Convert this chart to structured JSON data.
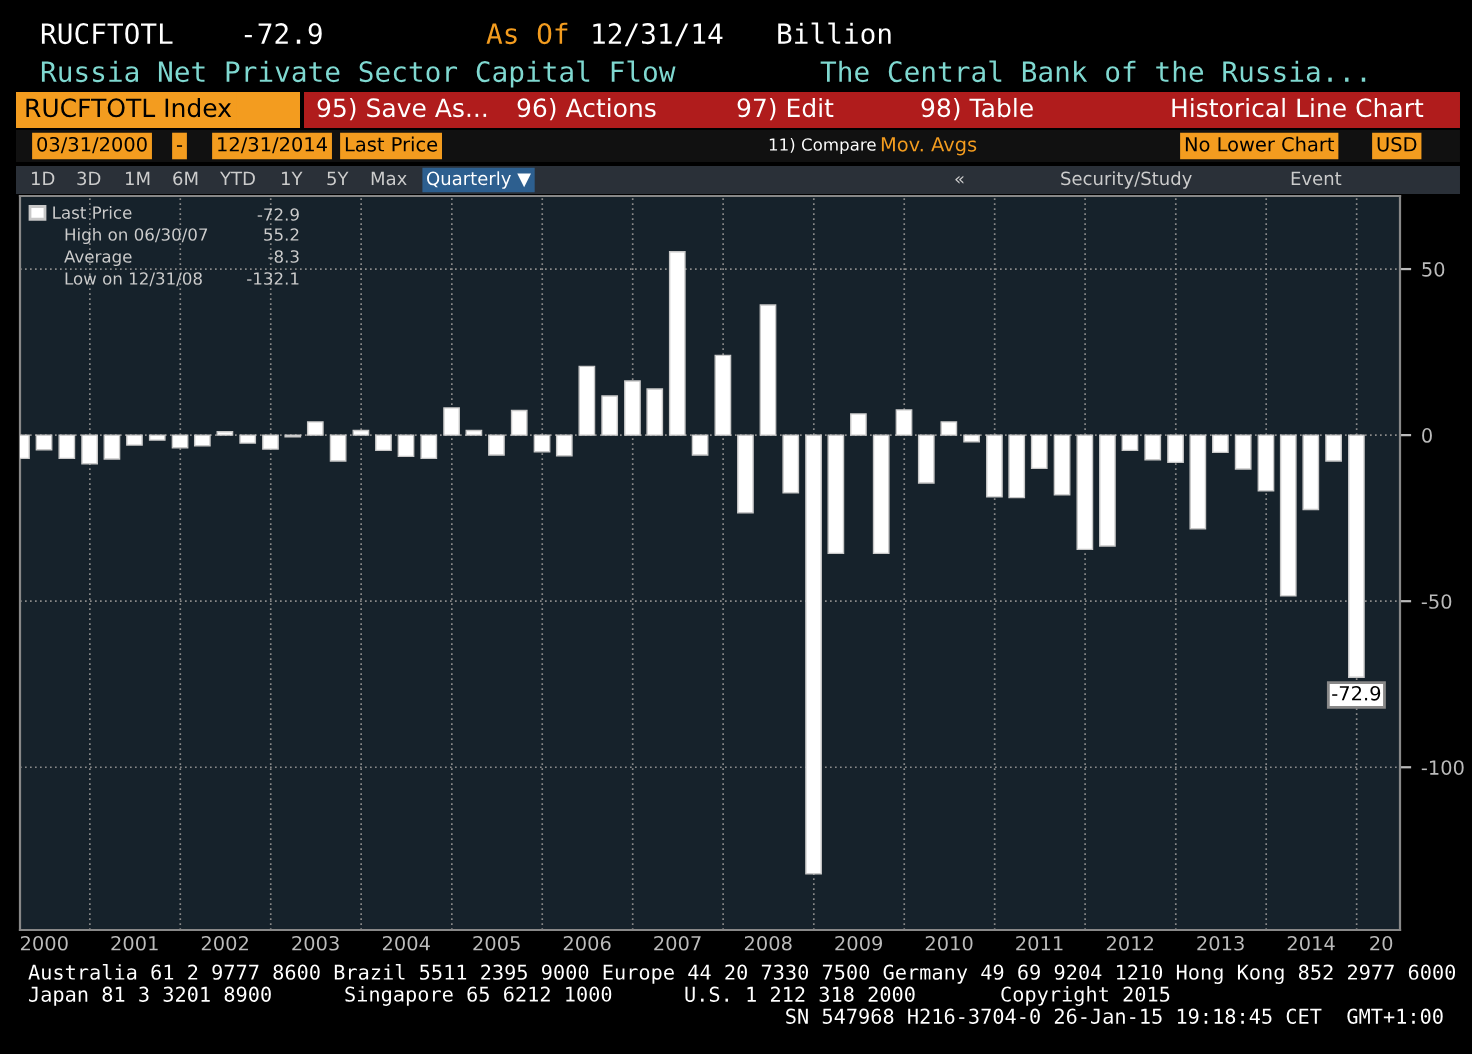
{
  "chart_data": {
    "type": "bar",
    "title": "Russia Net Private Sector Capital Flow",
    "subtitle": "The Central Bank of the Russia...",
    "x": [
      "2000-03-31",
      "2000-06-30",
      "2000-09-30",
      "2000-12-31",
      "2001-03-31",
      "2001-06-30",
      "2001-09-30",
      "2001-12-31",
      "2002-03-31",
      "2002-06-30",
      "2002-09-30",
      "2002-12-31",
      "2003-03-31",
      "2003-06-30",
      "2003-09-30",
      "2003-12-31",
      "2004-03-31",
      "2004-06-30",
      "2004-09-30",
      "2004-12-31",
      "2005-03-31",
      "2005-06-30",
      "2005-09-30",
      "2005-12-31",
      "2006-03-31",
      "2006-06-30",
      "2006-09-30",
      "2006-12-31",
      "2007-03-31",
      "2007-06-30",
      "2007-09-30",
      "2007-12-31",
      "2008-03-31",
      "2008-06-30",
      "2008-09-30",
      "2008-12-31",
      "2009-03-31",
      "2009-06-30",
      "2009-09-30",
      "2009-12-31",
      "2010-03-31",
      "2010-06-30",
      "2010-09-30",
      "2010-12-31",
      "2011-03-31",
      "2011-06-30",
      "2011-09-30",
      "2011-12-31",
      "2012-03-31",
      "2012-06-30",
      "2012-09-30",
      "2012-12-31",
      "2013-03-31",
      "2013-06-30",
      "2013-09-30",
      "2013-12-31",
      "2014-03-31",
      "2014-06-30",
      "2014-09-30",
      "2014-12-31"
    ],
    "series": [
      {
        "name": "Last Price",
        "color": "#ffffff",
        "values": [
          -7,
          -4.4,
          -7,
          -8.6,
          -7.2,
          -3,
          -1.5,
          -3.8,
          -3.2,
          1,
          -2.4,
          -4.2,
          -0.5,
          4,
          -7.8,
          1.4,
          -4.6,
          -6.4,
          -7,
          8.2,
          1.4,
          -6,
          7.4,
          -5,
          -6.2,
          20.7,
          11.8,
          16.3,
          13.9,
          55.2,
          -6,
          24,
          -23.4,
          39.2,
          -17.4,
          -132.1,
          -35.6,
          6.4,
          -35.6,
          7.6,
          -14.4,
          4,
          -2,
          -18.6,
          -18.8,
          -10,
          -18,
          -34.4,
          -33.4,
          -4.6,
          -7.4,
          -8.2,
          -28.2,
          -5.2,
          -10.2,
          -16.8,
          -48.4,
          -22.4,
          -7.8,
          -72.9
        ],
        "value_labels": [
          null,
          null,
          null,
          null,
          null,
          null,
          null,
          null,
          null,
          null,
          null,
          null,
          null,
          null,
          null,
          null,
          null,
          null,
          null,
          null,
          null,
          null,
          null,
          null,
          null,
          null,
          null,
          null,
          null,
          null,
          null,
          null,
          null,
          null,
          null,
          null,
          null,
          null,
          null,
          null,
          null,
          null,
          null,
          null,
          null,
          null,
          null,
          null,
          null,
          null,
          null,
          null,
          null,
          null,
          null,
          null,
          null,
          null,
          null,
          "-72.9"
        ]
      }
    ],
    "xlim": [
      "2000-03-25",
      "2015-06-25"
    ],
    "xticks": [
      {
        "value": "2000-07-01",
        "label": "2000"
      },
      {
        "value": "2001-01-01",
        "label": null
      },
      {
        "value": "2001-07-01",
        "label": "2001"
      },
      {
        "value": "2002-01-01",
        "label": null
      },
      {
        "value": "2002-07-01",
        "label": "2002"
      },
      {
        "value": "2003-01-01",
        "label": null
      },
      {
        "value": "2003-07-01",
        "label": "2003"
      },
      {
        "value": "2004-01-01",
        "label": null
      },
      {
        "value": "2004-07-01",
        "label": "2004"
      },
      {
        "value": "2005-01-01",
        "label": null
      },
      {
        "value": "2005-07-01",
        "label": "2005"
      },
      {
        "value": "2006-01-01",
        "label": null
      },
      {
        "value": "2006-07-01",
        "label": "2006"
      },
      {
        "value": "2007-01-01",
        "label": null
      },
      {
        "value": "2007-07-01",
        "label": "2007"
      },
      {
        "value": "2008-01-01",
        "label": null
      },
      {
        "value": "2008-07-01",
        "label": "2008"
      },
      {
        "value": "2009-01-01",
        "label": null
      },
      {
        "value": "2009-07-01",
        "label": "2009"
      },
      {
        "value": "2010-01-01",
        "label": null
      },
      {
        "value": "2010-07-01",
        "label": "2010"
      },
      {
        "value": "2011-01-01",
        "label": null
      },
      {
        "value": "2011-07-01",
        "label": "2011"
      },
      {
        "value": "2012-01-01",
        "label": null
      },
      {
        "value": "2012-07-01",
        "label": "2012"
      },
      {
        "value": "2013-01-01",
        "label": null
      },
      {
        "value": "2013-07-01",
        "label": "2013"
      },
      {
        "value": "2014-01-01",
        "label": null
      },
      {
        "value": "2014-07-01",
        "label": "2014"
      },
      {
        "value": "2015-01-01",
        "label": null
      },
      {
        "value": "2015-04-10",
        "label": "20"
      }
    ],
    "ylim": [
      -149,
      72
    ],
    "yticks": [
      50,
      0,
      -50,
      -100
    ],
    "grid": true,
    "legend": "top left",
    "annotations": [
      "RUCFTOTL",
      "-72.9",
      "As Of",
      "12/31/14",
      "Billion",
      "RUCFTOTL Index",
      "95) Save As...",
      "96) Actions",
      "97) Edit",
      "98) Table",
      "Historical Line Chart",
      "03/31/2000",
      "-",
      "12/31/2014",
      "Last Price",
      "11) Compare",
      "Mov. Avgs",
      "No Lower Chart",
      "USD",
      "1D",
      "3D",
      "1M",
      "6M",
      "YTD",
      "1Y",
      "5Y",
      "Max",
      "Quarterly ▼",
      "«",
      "Security/Study",
      "Event",
      "-72.9",
      "High on 06/30/07",
      "55.2",
      "Average",
      "-8.3",
      "Low on 12/31/08",
      "-132.1",
      "Australia 61 2 9777 8600 Brazil 5511 2395 9000 Europe 44 20 7330 7500 Germany 49 69 9204 1210 Hong Kong 852 2977 6000",
      "Japan 81 3 3201 8900",
      "Singapore 65 6212 1000",
      "U.S. 1 212 318 2000",
      "Copyright 2015",
      "SN 547968 H216-3704-0 26-Jan-15 19:18:45 CET  GMT+1:00"
    ]
  }
}
